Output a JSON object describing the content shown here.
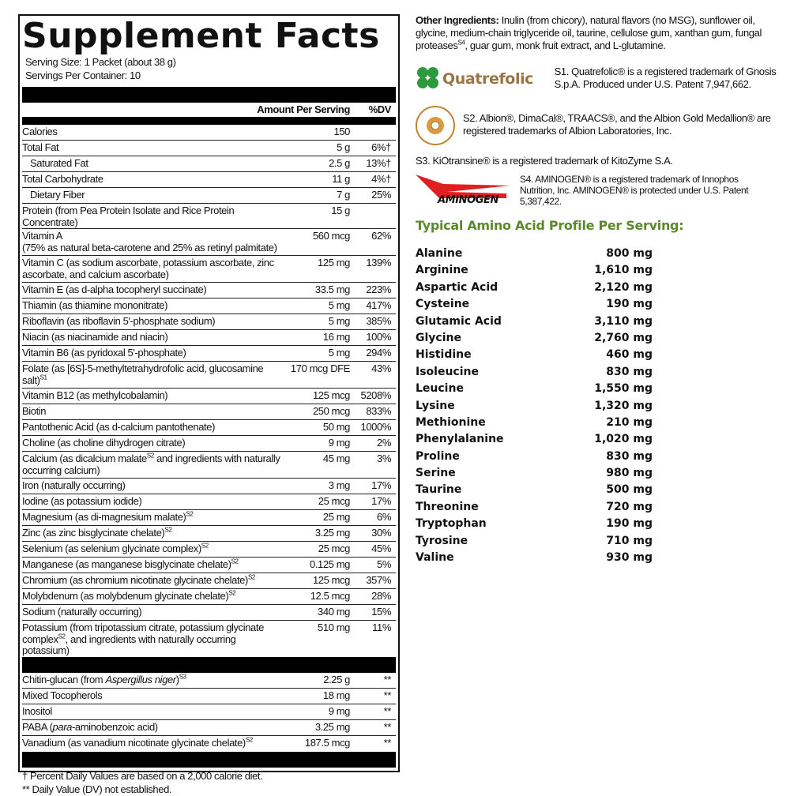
{
  "facts": {
    "title": "Supplement Facts",
    "serving_size": "Serving Size: 1 Packet (about 38 g)",
    "servings_per_container": "Servings Per Container: 10",
    "col_amount": "Amount Per Serving",
    "col_dv": "%DV",
    "rows": [
      {
        "name": "Calories",
        "amount": "150",
        "dv": ""
      },
      {
        "name": "Total Fat",
        "amount": "5 g",
        "dv": "6%†"
      },
      {
        "name": "Saturated Fat",
        "amount": "2.5 g",
        "dv": "13%†",
        "indent": true
      },
      {
        "name": "Total Carbohydrate",
        "amount": "11 g",
        "dv": "4%†"
      },
      {
        "name": "Dietary Fiber",
        "amount": "7 g",
        "dv": "25%",
        "indent": true
      },
      {
        "name": "Protein (from Pea Protein Isolate and Rice Protein Concentrate)",
        "amount": "15 g",
        "dv": ""
      },
      {
        "name": "Vitamin A\n(75% as natural beta-carotene and 25% as retinyl palmitate)",
        "amount": "560 mcg",
        "dv": "62%",
        "double": true
      },
      {
        "name": "Vitamin C (as sodium ascorbate, potassium ascorbate, zinc ascorbate, and calcium ascorbate)",
        "amount": "125 mg",
        "dv": "139%",
        "double": true
      },
      {
        "name": "Vitamin E (as d-alpha tocopheryl succinate)",
        "amount": "33.5 mg",
        "dv": "223%"
      },
      {
        "name": "Thiamin (as thiamine mononitrate)",
        "amount": "5 mg",
        "dv": "417%"
      },
      {
        "name": "Riboflavin (as riboflavin 5'-phosphate sodium)",
        "amount": "5 mg",
        "dv": "385%"
      },
      {
        "name": "Niacin (as niacinamide and niacin)",
        "amount": "16 mg",
        "dv": "100%"
      },
      {
        "name": "Vitamin B6 (as pyridoxal 5'-phosphate)",
        "amount": "5 mg",
        "dv": "294%"
      },
      {
        "name": "Folate (as [6S]-5-methyltetrahydrofolic acid, glucosamine salt)",
        "sup": "S1",
        "amount": "170 mcg DFE",
        "dv": "43%",
        "double": true
      },
      {
        "name": "Vitamin B12 (as methylcobalamin)",
        "amount": "125 mcg",
        "dv": "5208%"
      },
      {
        "name": "Biotin",
        "amount": "250 mcg",
        "dv": "833%"
      },
      {
        "name": "Pantothenic Acid (as d-calcium pantothenate)",
        "amount": "50 mg",
        "dv": "1000%"
      },
      {
        "name": "Choline (as choline dihydrogen citrate)",
        "amount": "9 mg",
        "dv": "2%"
      },
      {
        "name": "Calcium (as dicalcium malate",
        "sup": "S2",
        "post": " and ingredients with naturally occurring calcium)",
        "amount": "45 mg",
        "dv": "3%",
        "double": true
      },
      {
        "name": "Iron (naturally occurring)",
        "amount": "3 mg",
        "dv": "17%"
      },
      {
        "name": "Iodine (as potassium iodide)",
        "amount": "25 mcg",
        "dv": "17%"
      },
      {
        "name": "Magnesium (as di-magnesium malate)",
        "sup": "S2",
        "amount": "25 mg",
        "dv": "6%"
      },
      {
        "name": "Zinc (as zinc bisglycinate chelate)",
        "sup": "S2",
        "amount": "3.25 mg",
        "dv": "30%"
      },
      {
        "name": "Selenium (as selenium glycinate complex)",
        "sup": "S2",
        "amount": "25 mcg",
        "dv": "45%"
      },
      {
        "name": "Manganese (as manganese bisglycinate chelate)",
        "sup": "S2",
        "amount": "0.125 mg",
        "dv": "5%"
      },
      {
        "name": "Chromium (as chromium nicotinate glycinate chelate)",
        "sup": "S2",
        "amount": "125 mcg",
        "dv": "357%"
      },
      {
        "name": "Molybdenum (as molybdenum glycinate chelate)",
        "sup": "S2",
        "amount": "12.5 mcg",
        "dv": "28%"
      },
      {
        "name": "Sodium (naturally occurring)",
        "amount": "340 mg",
        "dv": "15%"
      },
      {
        "name": "Potassium (from tripotassium citrate, potassium glycinate complex",
        "sup": "S2",
        "post": ", and ingredients with naturally occurring potassium)",
        "amount": "510 mg",
        "dv": "11%",
        "double": true
      }
    ],
    "other_rows": [
      {
        "name": "Chitin-glucan (from ",
        "italic": "Aspergillus niger",
        "post": ")",
        "sup": "S3",
        "amount": "2.25 g",
        "dv": "**"
      },
      {
        "name": "Mixed Tocopherols",
        "amount": "18 mg",
        "dv": "**"
      },
      {
        "name": "Inositol",
        "amount": "9 mg",
        "dv": "**"
      },
      {
        "name": "PABA (",
        "italic": "para",
        "post": "-aminobenzoic acid)",
        "amount": "3.25 mg",
        "dv": "**"
      },
      {
        "name": "Vanadium (as vanadium nicotinate glycinate chelate)",
        "sup": "S2",
        "amount": "187.5 mcg",
        "dv": "**"
      }
    ],
    "footnote_1": "† Percent Daily Values are based on a 2,000 calorie diet.",
    "footnote_2": "** Daily Value (DV) not established."
  },
  "other_ingredients": {
    "label": "Other Ingredients:",
    "text": " Inulin (from chicory), natural flavors (no MSG), sunflower oil, glycine, medium-chain triglyceride oil, taurine, cellulose gum, xanthan gum, fungal proteases",
    "sup": "S4",
    "text_end": ", guar gum, monk fruit extract, and L-glutamine."
  },
  "trademarks": {
    "quatrefolic_logo": "Quatrefolic",
    "s1": "S1. Quatrefolic® is a registered trademark of Gnosis S.p.A. Produced under U.S. Patent 7,947,662.",
    "albion_logo": "ALBION MINERALS",
    "s2": "S2. Albion®, DimaCal®, TRAACS®, and the Albion Gold Medallion® are registered trademarks of Albion Laboratories, Inc.",
    "s3": "S3. KiOtransine® is a registered trademark of KitoZyme S.A.",
    "aminogen_logo": "AMINOGEN",
    "s4": "S4. AMINOGEN® is a registered trademark of Innophos Nutrition, Inc. AMINOGEN® is protected under U.S. Patent 5,387,422."
  },
  "amino": {
    "title": "Typical Amino Acid Profile Per Serving:",
    "title_color": "#5a8a2b",
    "items": [
      {
        "name": "Alanine",
        "value": "800 mg"
      },
      {
        "name": "Arginine",
        "value": "1,610 mg"
      },
      {
        "name": "Aspartic Acid",
        "value": "2,120 mg"
      },
      {
        "name": "Cysteine",
        "value": "190 mg"
      },
      {
        "name": "Glutamic Acid",
        "value": "3,110 mg"
      },
      {
        "name": "Glycine",
        "value": "2,760 mg"
      },
      {
        "name": "Histidine",
        "value": "460 mg"
      },
      {
        "name": "Isoleucine",
        "value": "830 mg"
      },
      {
        "name": "Leucine",
        "value": "1,550 mg"
      },
      {
        "name": "Lysine",
        "value": "1,320 mg"
      },
      {
        "name": "Methionine",
        "value": "210 mg"
      },
      {
        "name": "Phenylalanine",
        "value": "1,020 mg"
      },
      {
        "name": "Proline",
        "value": "830 mg"
      },
      {
        "name": "Serine",
        "value": "980 mg"
      },
      {
        "name": "Taurine",
        "value": "500 mg"
      },
      {
        "name": "Threonine",
        "value": "720 mg"
      },
      {
        "name": "Tryptophan",
        "value": "190 mg"
      },
      {
        "name": "Tyrosine",
        "value": "710 mg"
      },
      {
        "name": "Valine",
        "value": "930 mg"
      }
    ]
  }
}
